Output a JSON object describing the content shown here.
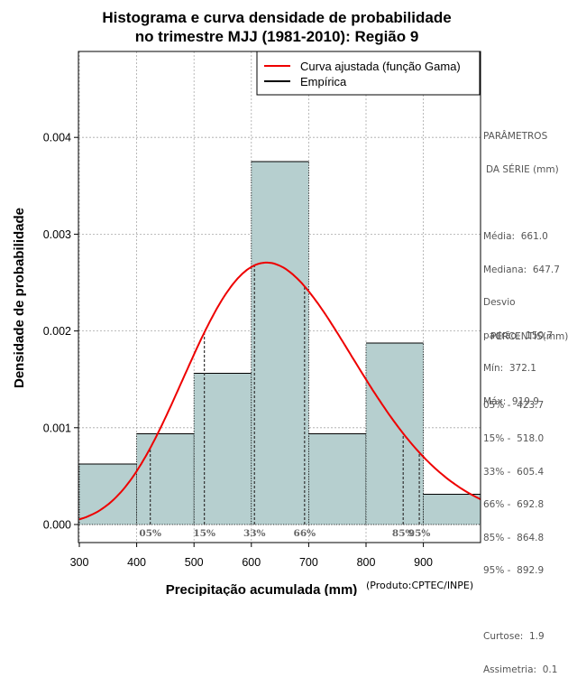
{
  "chart_data": {
    "type": "histogram",
    "title_line1": "Histograma e curva densidade de probabilidade",
    "title_line2": "no trimestre MJJ (1981-2010): Região 9",
    "xlabel": "Precipitação acumulada (mm)",
    "ylabel": "Densidade de probabilidade",
    "credit": "(Produto:CPTEC/INPE)",
    "xlim": [
      300,
      1000
    ],
    "ylim": [
      0,
      0.0048
    ],
    "x_ticks": [
      300,
      400,
      500,
      600,
      700,
      800,
      900
    ],
    "y_ticks": [
      0.0,
      0.001,
      0.002,
      0.003,
      0.004
    ],
    "y_tick_labels": [
      "0.000",
      "0.001",
      "0.002",
      "0.003",
      "0.004"
    ],
    "grid": true,
    "bins": [
      {
        "start": 300,
        "end": 400,
        "density": 0.000625
      },
      {
        "start": 400,
        "end": 500,
        "density": 0.000938
      },
      {
        "start": 500,
        "end": 600,
        "density": 0.001563
      },
      {
        "start": 600,
        "end": 700,
        "density": 0.00375
      },
      {
        "start": 700,
        "end": 800,
        "density": 0.000938
      },
      {
        "start": 800,
        "end": 900,
        "density": 0.001875
      },
      {
        "start": 900,
        "end": 1000,
        "density": 0.000313
      }
    ],
    "gamma_fit": {
      "mean": 661.0,
      "sd": 150.7,
      "color": "#ee0000"
    },
    "bar_color": "#b6cfcf",
    "percentile_lines": [
      {
        "label": "05%",
        "value": 423.7
      },
      {
        "label": "15%",
        "value": 518.0
      },
      {
        "label": "33%",
        "value": 605.4
      },
      {
        "label": "66%",
        "value": 692.8
      },
      {
        "label": "85%",
        "value": 864.8
      },
      {
        "label": "95%",
        "value": 892.9
      }
    ],
    "legend": {
      "position": "top-right",
      "entries": [
        {
          "label": "Curva ajustada (função Gama)",
          "color": "#ee0000"
        },
        {
          "label": "Empírica",
          "color": "#000000"
        }
      ]
    }
  },
  "parameters": {
    "heading1": "PARÂMETROS",
    "heading2": "DA SÉRIE (mm)",
    "media": "Média:  661.0",
    "mediana": "Mediana:  647.7",
    "desvio": "Desvio",
    "padrao": "padrão:  150.7",
    "min": "Mín:  372.1",
    "max": "Máx:  919.9"
  },
  "percentis": {
    "heading": "PERCENTIS(mm)",
    "p05": "05% -  423.7",
    "p15": "15% -  518.0",
    "p33": "33% -  605.4",
    "p66": "66% -  692.8",
    "p85": "85% -  864.8",
    "p95": "95% -  892.9",
    "curtose": "Curtose:  1.9",
    "assimetria": "Assimetria:  0.1"
  }
}
